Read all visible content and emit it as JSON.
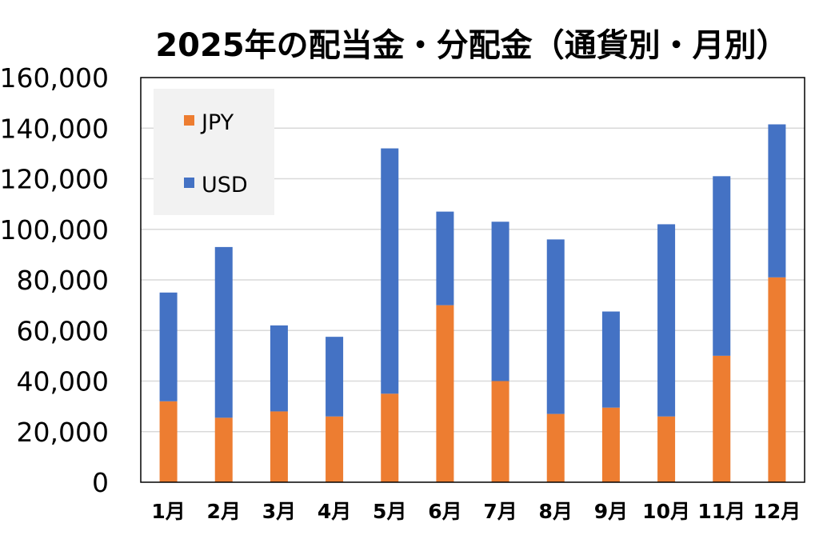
{
  "chart_data": {
    "type": "bar",
    "stacked": true,
    "title": "2025年の配当金・分配金（通貨別・月別）",
    "xlabel": "",
    "ylabel": "",
    "categories": [
      "1月",
      "2月",
      "3月",
      "4月",
      "5月",
      "6月",
      "7月",
      "8月",
      "9月",
      "10月",
      "11月",
      "12月"
    ],
    "series": [
      {
        "name": "JPY",
        "color": "#ED7D31",
        "values": [
          32000,
          25500,
          28000,
          26000,
          35000,
          70000,
          40000,
          27000,
          29500,
          26000,
          50000,
          81000
        ]
      },
      {
        "name": "USD",
        "color": "#4472C4",
        "values": [
          43000,
          67500,
          34000,
          31500,
          97000,
          37000,
          63000,
          69000,
          38000,
          76000,
          71000,
          60500
        ]
      }
    ],
    "ylim": [
      0,
      160000
    ],
    "yticks": [
      "0",
      "20,000",
      "40,000",
      "60,000",
      "80,000",
      "100,000",
      "120,000",
      "140,000",
      "160,000"
    ],
    "grid": true,
    "legend_position": "top-left"
  }
}
